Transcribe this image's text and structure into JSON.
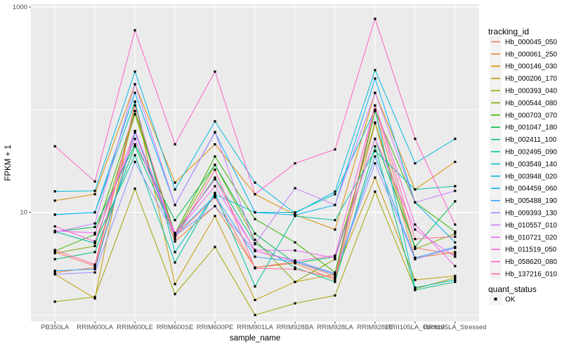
{
  "figure": {
    "background": "#FFFFFF",
    "panel_bg": "#EBEBEB",
    "grid_color": "#FFFFFF",
    "axis_text_color": "#4D4D4D",
    "tick_color": "#333333",
    "point_color": "#000000",
    "legend_key_bg": "#F2F2F2"
  },
  "axes": {
    "x_title": "sample_name",
    "y_title": "FPKM + 1",
    "y_tick_labels": [
      "1000",
      "10"
    ]
  },
  "legend": {
    "tracking_title": "tracking_id",
    "quant_title": "quant_status",
    "quant_items": [
      {
        "label": "OK",
        "marker": "black-square"
      }
    ]
  },
  "chart_data": {
    "type": "line",
    "title": "",
    "xlabel": "sample_name",
    "ylabel": "FPKM + 1",
    "y_scale": "log10",
    "y_breaks": [
      10,
      1000
    ],
    "y_minor_breaks": [
      1,
      100
    ],
    "ylim": [
      0.85,
      1070
    ],
    "grid": true,
    "legend_position": "right",
    "point_marker": "black-square",
    "categories": [
      "PB350LA",
      "RRIM600LA",
      "RRIM600LE",
      "RRIM600SE",
      "RRIM600PE",
      "RRIM901LA",
      "RRIM928BA",
      "RRIM928LA",
      "RRIM928LE",
      "RRII105LA_Control",
      "RRII105LA_Stressed"
    ],
    "series": [
      {
        "name": "Hb_000045_050",
        "color": "#F8766D",
        "values": [
          4.1,
          3.0,
          97,
          5.8,
          14,
          2.9,
          3.3,
          2.4,
          97,
          4.5,
          3.9
        ]
      },
      {
        "name": "Hb_000061_250",
        "color": "#EC823C",
        "values": [
          2.6,
          2.9,
          62,
          5.2,
          11.5,
          2.9,
          3.2,
          2.2,
          74,
          3.6,
          4.1
        ]
      },
      {
        "name": "Hb_000146_030",
        "color": "#DB8E00",
        "values": [
          13,
          15,
          177,
          19.5,
          46,
          15,
          9.5,
          6.8,
          146,
          16.7,
          31
        ]
      },
      {
        "name": "Hb_000206_170",
        "color": "#C49A00",
        "values": [
          2.5,
          1.45,
          120,
          2.0,
          9.2,
          1.4,
          2.1,
          2.5,
          21.8,
          2.2,
          2.4
        ]
      },
      {
        "name": "Hb_000393_040",
        "color": "#A3A500",
        "values": [
          1.35,
          1.5,
          17,
          1.6,
          4.6,
          1.0,
          1.3,
          1.55,
          15.9,
          1.8,
          2.3
        ]
      },
      {
        "name": "Hb_000544_080",
        "color": "#7CAE00",
        "values": [
          4.0,
          4.7,
          90,
          6.0,
          29,
          5.4,
          2.1,
          3.5,
          75,
          4.4,
          6.2
        ]
      },
      {
        "name": "Hb_000703_070",
        "color": "#39B600",
        "values": [
          4.2,
          6.1,
          97,
          6.2,
          35,
          8.6,
          5.1,
          2.6,
          97,
          12.5,
          6.5
        ]
      },
      {
        "name": "Hb_001047_180",
        "color": "#00BB4E",
        "values": [
          6.5,
          7.2,
          46,
          8.4,
          29,
          6.2,
          3.2,
          3.7,
          52,
          4.6,
          12.8
        ]
      },
      {
        "name": "Hb_002411_100",
        "color": "#00BF7D",
        "values": [
          3.5,
          4.1,
          44,
          6.0,
          21.8,
          5.0,
          2.9,
          2.1,
          44,
          1.75,
          2.1
        ]
      },
      {
        "name": "Hb_002495_090",
        "color": "#00C1A3",
        "values": [
          6.5,
          5.0,
          36,
          3.25,
          15.5,
          1.9,
          9.2,
          8.4,
          39.6,
          16.7,
          18
        ]
      },
      {
        "name": "Hb_003549_140",
        "color": "#00BFC4",
        "values": [
          9.5,
          10,
          119,
          4.1,
          15,
          10,
          10,
          15,
          100,
          1.85,
          2.2
        ]
      },
      {
        "name": "Hb_003948_020",
        "color": "#00BADE",
        "values": [
          16,
          16.2,
          235,
          16.7,
          77,
          19.5,
          9.8,
          15.9,
          243,
          30,
          52
        ]
      },
      {
        "name": "Hb_004459_060",
        "color": "#00B0F6",
        "values": [
          9.5,
          10,
          146,
          11.8,
          60,
          10,
          9.4,
          11.8,
          201,
          12.5,
          5.1
        ]
      },
      {
        "name": "Hb_005488_190",
        "color": "#35A2FF",
        "values": [
          2.7,
          2.8,
          60,
          6.0,
          14.5,
          3.7,
          3.3,
          2.5,
          35,
          3.6,
          4.6
        ]
      },
      {
        "name": "Hb_009393_130",
        "color": "#9590FF",
        "values": [
          2.5,
          2.6,
          31,
          5.9,
          11.5,
          4.2,
          3.4,
          2.55,
          30,
          3.5,
          4.5
        ]
      },
      {
        "name": "Hb_010557_010",
        "color": "#C77CFF",
        "values": [
          6.4,
          7.8,
          177,
          11.8,
          60.6,
          4.9,
          17.2,
          11.8,
          146,
          12.5,
          16.2
        ]
      },
      {
        "name": "Hb_010721_020",
        "color": "#E76BF3",
        "values": [
          6.6,
          6.3,
          52,
          6.1,
          18,
          4.3,
          4.25,
          3.6,
          52,
          6.8,
          3.7
        ]
      },
      {
        "name": "Hb_011519_050",
        "color": "#FA62DB",
        "values": [
          7.3,
          5.2,
          62,
          6.3,
          21,
          4.2,
          3.35,
          3.8,
          110,
          7.6,
          3.0
        ]
      },
      {
        "name": "Hb_058620_080",
        "color": "#FF61C9",
        "values": [
          44,
          20,
          594,
          46,
          235,
          15,
          30,
          41,
          766,
          52,
          7.6
        ]
      },
      {
        "name": "Hb_137216_010",
        "color": "#FF6A98",
        "values": [
          4.3,
          3.1,
          110,
          5.5,
          26,
          2.85,
          2.8,
          2.3,
          110,
          5.5,
          5.8
        ]
      }
    ]
  }
}
